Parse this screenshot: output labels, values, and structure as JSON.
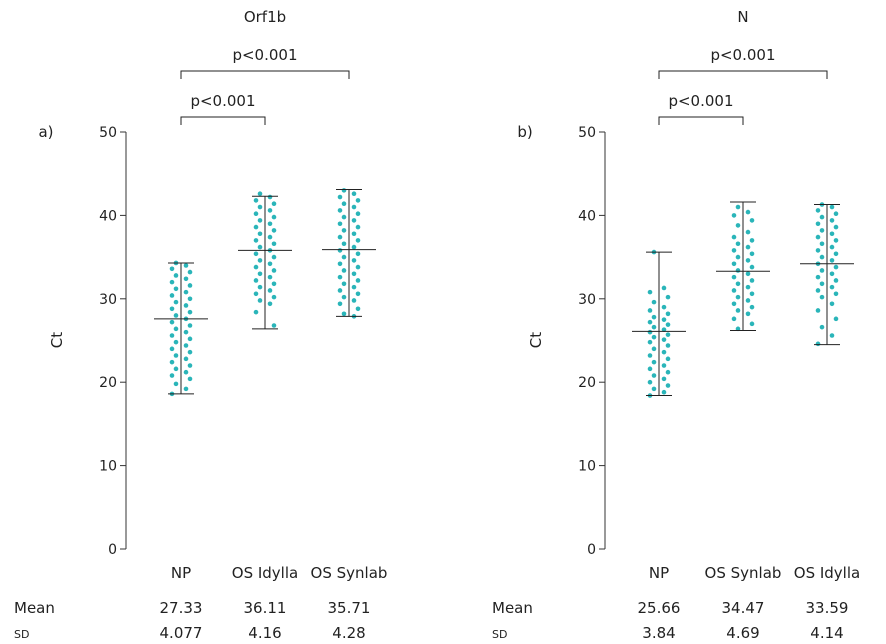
{
  "chart_data": [
    {
      "type": "scatter",
      "panel_label": "a)",
      "title": "Orf1b",
      "ylabel": "Ct",
      "ylim": [
        0,
        50
      ],
      "yticks": [
        0,
        10,
        20,
        30,
        40,
        50
      ],
      "categories": [
        "NP",
        "OS Idylla",
        "OS Synlab"
      ],
      "groups": [
        {
          "category": "NP",
          "center": 27.6,
          "low": 18.6,
          "high": 34.3,
          "points": [
            34.3,
            34.0,
            33.6,
            33.2,
            32.8,
            32.4,
            32.0,
            31.6,
            31.2,
            30.8,
            30.4,
            30.0,
            29.6,
            29.2,
            28.8,
            28.4,
            28.0,
            27.6,
            27.2,
            26.8,
            26.4,
            26.0,
            25.6,
            25.2,
            24.8,
            24.4,
            24.0,
            23.6,
            23.2,
            22.8,
            22.4,
            22.0,
            21.6,
            21.2,
            20.8,
            20.4,
            19.8,
            19.2,
            18.6
          ]
        },
        {
          "category": "OS Idylla",
          "center": 35.8,
          "low": 26.4,
          "high": 42.3,
          "points": [
            42.6,
            42.2,
            41.8,
            41.4,
            41.0,
            40.6,
            40.2,
            39.8,
            39.4,
            39.0,
            38.6,
            38.2,
            37.8,
            37.4,
            37.0,
            36.6,
            36.2,
            35.8,
            35.4,
            35.0,
            34.6,
            34.2,
            33.8,
            33.4,
            33.0,
            32.6,
            32.2,
            31.8,
            31.4,
            31.0,
            30.6,
            30.2,
            29.8,
            29.4,
            28.4,
            26.8
          ]
        },
        {
          "category": "OS Synlab",
          "center": 35.9,
          "low": 27.9,
          "high": 43.1,
          "points": [
            43.0,
            42.6,
            42.2,
            41.8,
            41.4,
            41.0,
            40.6,
            40.2,
            39.8,
            39.4,
            39.0,
            38.6,
            38.2,
            37.8,
            37.4,
            37.0,
            36.6,
            36.2,
            35.8,
            35.4,
            35.0,
            34.6,
            34.2,
            33.8,
            33.4,
            33.0,
            32.6,
            32.2,
            31.8,
            31.4,
            31.0,
            30.6,
            30.2,
            29.8,
            29.4,
            28.8,
            28.2,
            27.9
          ]
        }
      ],
      "brackets": [
        {
          "from": "NP",
          "to": "OS Idylla",
          "label": "p<0.001",
          "level": 1
        },
        {
          "from": "NP",
          "to": "OS Synlab",
          "label": "p<0.001",
          "level": 2
        }
      ],
      "stats": {
        "mean_label": "Mean",
        "sd_label": "SD",
        "mean": [
          "27.33",
          "36.11",
          "35.71"
        ],
        "sd": [
          "4.077",
          "4.16",
          "4.28"
        ]
      }
    },
    {
      "type": "scatter",
      "panel_label": "b)",
      "title": "N",
      "ylabel": "Ct",
      "ylim": [
        0,
        50
      ],
      "yticks": [
        0,
        10,
        20,
        30,
        40,
        50
      ],
      "categories": [
        "NP",
        "OS Synlab",
        "OS Idylla"
      ],
      "groups": [
        {
          "category": "NP",
          "center": 26.1,
          "low": 18.4,
          "high": 35.6,
          "points": [
            35.6,
            31.3,
            30.8,
            30.2,
            29.6,
            29.0,
            28.6,
            28.2,
            27.8,
            27.5,
            27.2,
            26.9,
            26.6,
            26.3,
            26.0,
            25.7,
            25.4,
            25.1,
            24.8,
            24.4,
            24.0,
            23.6,
            23.2,
            22.8,
            22.4,
            22.0,
            21.6,
            21.2,
            20.8,
            20.4,
            20.0,
            19.6,
            19.2,
            18.8,
            18.4
          ]
        },
        {
          "category": "OS Synlab",
          "center": 33.3,
          "low": 26.2,
          "high": 41.6,
          "points": [
            41.0,
            40.4,
            40.0,
            39.4,
            38.8,
            38.0,
            37.4,
            37.0,
            36.6,
            36.2,
            35.8,
            35.4,
            35.0,
            34.6,
            34.2,
            33.8,
            33.4,
            33.0,
            32.6,
            32.2,
            31.8,
            31.4,
            31.0,
            30.6,
            30.2,
            29.8,
            29.4,
            29.0,
            28.6,
            28.2,
            27.6,
            27.0,
            26.4
          ]
        },
        {
          "category": "OS Idylla",
          "center": 34.2,
          "low": 24.5,
          "high": 41.3,
          "points": [
            41.3,
            41.0,
            40.6,
            40.2,
            39.8,
            39.4,
            39.0,
            38.6,
            38.2,
            37.8,
            37.4,
            37.0,
            36.6,
            36.2,
            35.8,
            35.4,
            35.0,
            34.6,
            34.2,
            33.8,
            33.4,
            33.0,
            32.6,
            32.2,
            31.8,
            31.4,
            31.0,
            30.6,
            30.2,
            29.4,
            28.6,
            27.6,
            26.6,
            25.6,
            24.6
          ]
        }
      ],
      "brackets": [
        {
          "from": "NP",
          "to": "OS Synlab",
          "label": "p<0.001",
          "level": 1
        },
        {
          "from": "NP",
          "to": "OS Idylla",
          "label": "p<0.001",
          "level": 2
        }
      ],
      "stats": {
        "mean_label": "Mean",
        "sd_label": "SD",
        "mean": [
          "25.66",
          "34.47",
          "33.59"
        ],
        "sd": [
          "3.84",
          "4.69",
          "4.14"
        ]
      }
    }
  ],
  "colors": {
    "dots": "#2ab5b9",
    "lines": "#222222"
  }
}
